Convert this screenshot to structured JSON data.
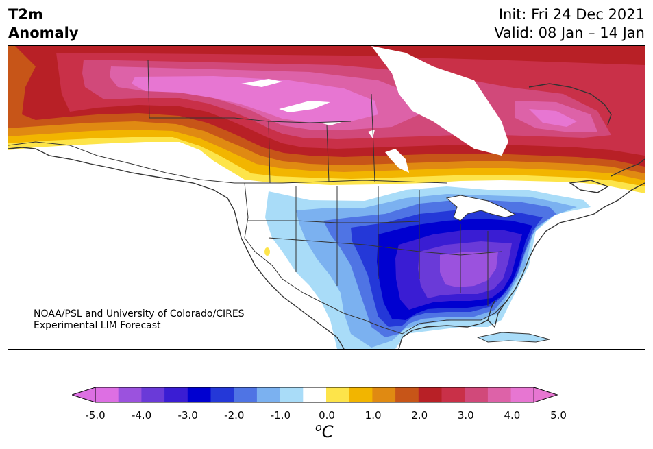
{
  "header": {
    "variable": "T2m",
    "field": "Anomaly",
    "init": "Init: Fri 24 Dec 2021",
    "valid": "Valid: 08 Jan – 14 Jan"
  },
  "credit": {
    "line1": "NOAA/PSL and University of Colorado/CIRES",
    "line2": "Experimental LIM Forecast"
  },
  "colorbar": {
    "unit_base": "C",
    "unit_prefix": "o",
    "ticks": [
      "-5.0",
      "-4.0",
      "-3.0",
      "-2.0",
      "-1.0",
      "0.0",
      "1.0",
      "2.0",
      "3.0",
      "4.0",
      "5.0"
    ],
    "colors": [
      "#dd6fe3",
      "#9b52de",
      "#6a3ad8",
      "#3a1dd3",
      "#0000d0",
      "#2438d8",
      "#4f74e4",
      "#7bb1f0",
      "#a9dcf8",
      "#ffffff",
      "#fde44a",
      "#f2b500",
      "#e08a12",
      "#c75518",
      "#b82026",
      "#c93048",
      "#d1497a",
      "#dd62a8",
      "#e776d2"
    ],
    "extend_min_color": "#dd6fe3",
    "extend_max_color": "#e776d2"
  },
  "map": {
    "region": "North America",
    "warm_anomaly_region": "Canada and Alaska",
    "cold_anomaly_region": "Central and Eastern United States"
  }
}
